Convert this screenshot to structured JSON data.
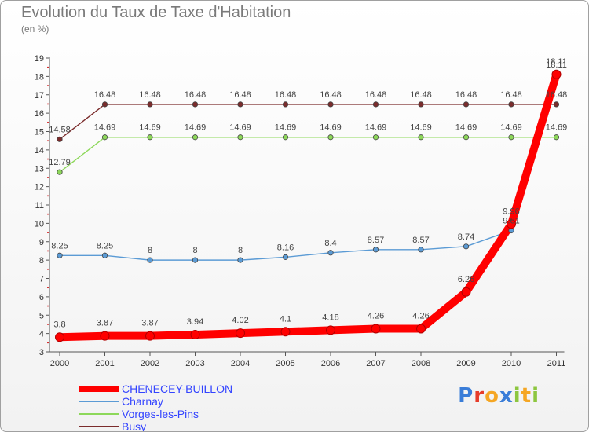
{
  "page": {
    "title": "Evolution du Taux de Taxe d'Habitation",
    "subtitle": "(en %)"
  },
  "brand": {
    "letters": [
      {
        "ch": "P",
        "color": "#3a7dd8"
      },
      {
        "ch": "r",
        "color": "#e63c2a"
      },
      {
        "ch": "o",
        "color": "#f5a623"
      },
      {
        "ch": "x",
        "color": "#3a7dd8"
      },
      {
        "ch": "i",
        "color": "#8dc63f"
      },
      {
        "ch": "t",
        "color": "#f5a623"
      },
      {
        "ch": "i",
        "color": "#8dc63f"
      }
    ]
  },
  "chart_data": {
    "type": "line",
    "title": "Evolution du Taux de Taxe d'Habitation",
    "ylabel": "(en %)",
    "xlabel": "",
    "x": [
      "2000",
      "2001",
      "2002",
      "2003",
      "2004",
      "2005",
      "2006",
      "2007",
      "2008",
      "2009",
      "2010",
      "2011"
    ],
    "ylim": [
      3,
      19
    ],
    "yticks": [
      3,
      4,
      5,
      6,
      7,
      8,
      9,
      10,
      11,
      12,
      13,
      14,
      15,
      16,
      17,
      18,
      19
    ],
    "grid": false,
    "legend_position": "bottom-left",
    "series": [
      {
        "name": "CHENECEY-BUILLON",
        "color": "#ff0000",
        "emphasis": true,
        "values": [
          3.8,
          3.87,
          3.87,
          3.94,
          4.02,
          4.1,
          4.18,
          4.26,
          4.26,
          6.26,
          9.96,
          18.11
        ],
        "labels": [
          "3.8",
          "3.87",
          "3.87",
          "3.94",
          "4.02",
          "4.1",
          "4.18",
          "4.26",
          "4.26",
          "6.26",
          "9.96",
          "18.11"
        ]
      },
      {
        "name": "Charnay",
        "color": "#5b9bd5",
        "values": [
          8.25,
          8.25,
          8,
          8,
          8,
          8.16,
          8.4,
          8.57,
          8.57,
          8.74,
          9.61,
          18.11
        ],
        "labels": [
          "8.25",
          "8.25",
          "8",
          "8",
          "8",
          "8.16",
          "8.4",
          "8.57",
          "8.57",
          "8.74",
          "9.61",
          "18.11"
        ]
      },
      {
        "name": "Vorges-les-Pins",
        "color": "#8dd85a",
        "values": [
          12.79,
          14.69,
          14.69,
          14.69,
          14.69,
          14.69,
          14.69,
          14.69,
          14.69,
          14.69,
          14.69,
          14.69
        ],
        "labels": [
          "12.79",
          "14.69",
          "14.69",
          "14.69",
          "14.69",
          "14.69",
          "14.69",
          "14.69",
          "14.69",
          "14.69",
          "14.69",
          "14.69"
        ]
      },
      {
        "name": "Busy",
        "color": "#7b2c2c",
        "values": [
          14.58,
          16.48,
          16.48,
          16.48,
          16.48,
          16.48,
          16.48,
          16.48,
          16.48,
          16.48,
          16.48,
          16.48
        ],
        "labels": [
          "14.58",
          "16.48",
          "16.48",
          "16.48",
          "16.48",
          "16.48",
          "16.48",
          "16.48",
          "16.48",
          "16.48",
          "16.48",
          "16.48"
        ]
      }
    ]
  }
}
